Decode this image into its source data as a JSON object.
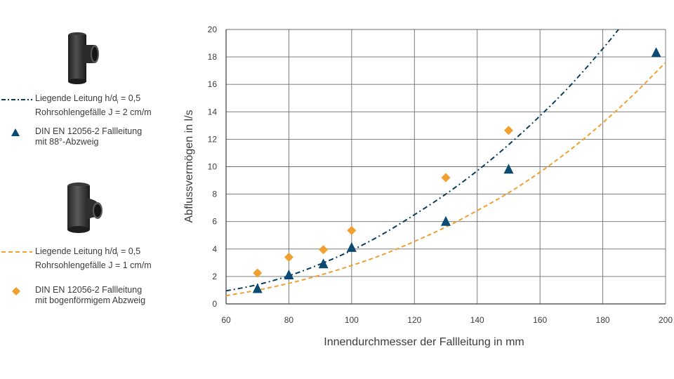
{
  "chart_data": {
    "type": "scatter",
    "xlabel": "Innendurchmesser der Fallleitung in mm",
    "ylabel": "Abflussvermögen in l/s",
    "xlim": [
      60,
      200
    ],
    "ylim": [
      0,
      20
    ],
    "xticks": [
      60,
      80,
      100,
      120,
      140,
      160,
      180,
      200
    ],
    "yticks": [
      0,
      2,
      4,
      6,
      8,
      10,
      12,
      14,
      16,
      18,
      20
    ],
    "grid": true,
    "legend_position": "left",
    "series": [
      {
        "name_lines": [
          "Liegende Leitung h/d",
          "Rohrsohlengefälle J = 2 cm/m"
        ],
        "name_line1_sub": "i",
        "name_line1_tail": " = 0,5",
        "kind": "curve",
        "style": "dash-dot",
        "color": "#0b3d5c",
        "x": [
          60,
          70,
          80,
          90,
          100,
          110,
          120,
          130,
          140,
          150,
          160,
          170,
          180,
          185
        ],
        "y": [
          0.95,
          1.4,
          2.05,
          2.9,
          3.9,
          5.1,
          6.5,
          8.0,
          9.7,
          11.6,
          13.7,
          16.0,
          18.6,
          20.0
        ]
      },
      {
        "name_lines": [
          "DIN EN 12056-2 Fallleitung",
          "mit 88°-Abzweig"
        ],
        "kind": "points",
        "marker": "triangle",
        "color": "#0b4a73",
        "x": [
          70,
          80,
          91,
          100,
          130,
          150,
          197
        ],
        "y": [
          1.1,
          2.1,
          2.9,
          4.1,
          6.0,
          9.8,
          18.3
        ]
      },
      {
        "name_lines": [
          "Liegende Leitung h/d",
          "Rohrsohlengefälle J = 1 cm/m"
        ],
        "name_line1_sub": "i",
        "name_line1_tail": " = 0,5",
        "kind": "curve",
        "style": "dashed",
        "color": "#f0a030",
        "x": [
          60,
          70,
          80,
          90,
          100,
          110,
          120,
          130,
          140,
          150,
          160,
          170,
          180,
          190,
          200
        ],
        "y": [
          0.6,
          1.0,
          1.5,
          2.1,
          2.8,
          3.6,
          4.55,
          5.6,
          6.8,
          8.1,
          9.6,
          11.3,
          13.2,
          15.3,
          17.6
        ]
      },
      {
        "name_lines": [
          "DIN EN 12056-2 Fallleitung",
          "mit bogenförmigem Abzweig"
        ],
        "kind": "points",
        "marker": "diamond",
        "color": "#f0a030",
        "x": [
          70,
          80,
          91,
          100,
          130,
          150
        ],
        "y": [
          2.25,
          3.4,
          3.95,
          5.35,
          9.2,
          12.65
        ]
      }
    ]
  }
}
